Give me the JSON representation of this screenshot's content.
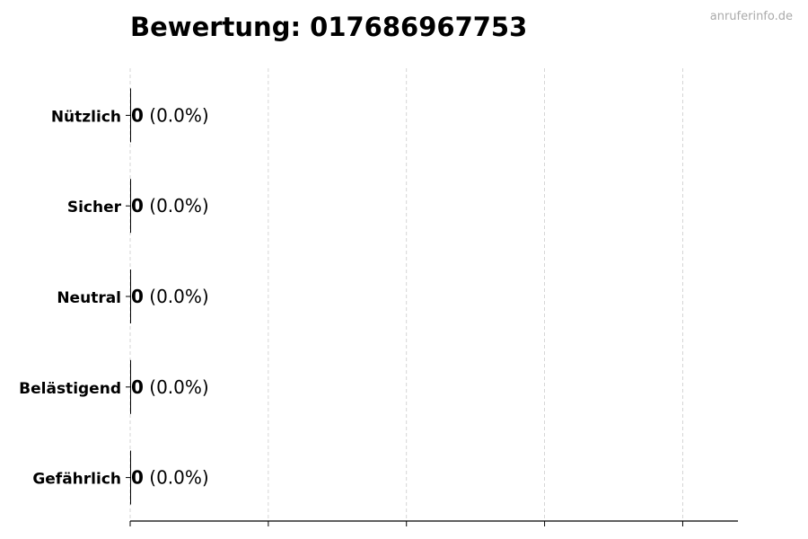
{
  "watermark": "anruferinfo.de",
  "chart_data": {
    "type": "bar",
    "orientation": "horizontal",
    "title": "Bewertung: 017686967753",
    "categories": [
      "Nützlich",
      "Sicher",
      "Neutral",
      "Belästigend",
      "Gefährlich"
    ],
    "values": [
      0,
      0,
      0,
      0,
      0
    ],
    "labels": [
      "0",
      "0",
      "0",
      "0",
      "0"
    ],
    "percent_labels": [
      "(0.0%)",
      "(0.0%)",
      "(0.0%)",
      "(0.0%)",
      "(0.0%)"
    ],
    "xlim": [
      0,
      4.4
    ],
    "xticks": [
      0,
      1,
      2,
      3,
      4
    ],
    "xtick_labels_visible": false,
    "grid": "x dashed",
    "bar_color": "#000000"
  }
}
